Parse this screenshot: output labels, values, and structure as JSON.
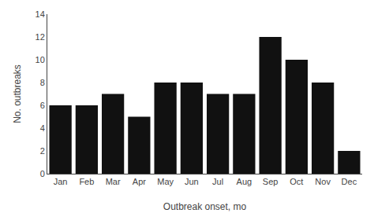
{
  "chart_data": {
    "type": "bar",
    "categories": [
      "Jan",
      "Feb",
      "Mar",
      "Apr",
      "May",
      "Jun",
      "Jul",
      "Aug",
      "Sep",
      "Oct",
      "Nov",
      "Dec"
    ],
    "values": [
      6,
      6,
      7,
      5,
      8,
      8,
      7,
      7,
      12,
      10,
      8,
      2
    ],
    "color": "#111111",
    "xlabel": "Outbreak onset, mo",
    "ylabel": "No. outbreaks",
    "ylim": [
      0,
      14
    ],
    "yticks": [
      0,
      2,
      4,
      6,
      8,
      10,
      12,
      14
    ],
    "grid": false
  }
}
